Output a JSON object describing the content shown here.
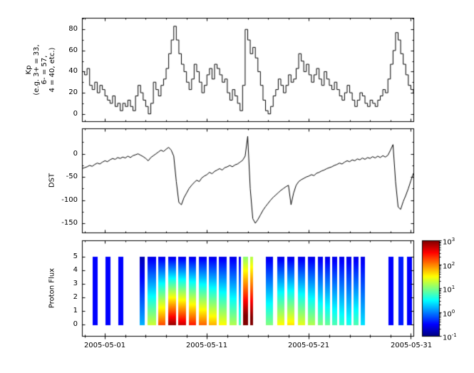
{
  "figure": {
    "background": "#ffffff",
    "x_axis": {
      "tick_labels": [
        "2005-05-01",
        "2005-05-11",
        "2005-05-21",
        "2005-05-31"
      ],
      "tick_days": [
        0,
        10,
        20,
        30
      ],
      "minor_tick_every_days": 2,
      "xlim_days": [
        -2.25,
        30.25
      ]
    }
  },
  "chart_data": [
    {
      "type": "line",
      "name": "kp-index",
      "ylabel_lines": [
        "Kp",
        "(e.g. 3+ = 33,",
        "6- = 57,",
        "4 = 40, etc.)"
      ],
      "ylim": [
        -7,
        91
      ],
      "yticks": [
        0,
        20,
        40,
        60,
        80
      ],
      "yticks_minor": [
        10,
        30,
        50,
        70,
        90
      ],
      "line_color": "#000000",
      "line_style": "step",
      "x_start_day": -2.25,
      "x_step_days": 0.25,
      "values": [
        40,
        37,
        43,
        27,
        23,
        30,
        20,
        27,
        23,
        17,
        13,
        10,
        17,
        7,
        10,
        3,
        10,
        7,
        13,
        7,
        3,
        17,
        27,
        20,
        13,
        7,
        0,
        10,
        30,
        23,
        17,
        27,
        33,
        43,
        57,
        70,
        83,
        70,
        57,
        47,
        40,
        30,
        23,
        33,
        47,
        40,
        30,
        20,
        27,
        37,
        43,
        33,
        47,
        43,
        37,
        30,
        33,
        20,
        13,
        23,
        17,
        10,
        3,
        27,
        80,
        70,
        57,
        63,
        53,
        40,
        27,
        13,
        3,
        0,
        7,
        17,
        23,
        33,
        27,
        20,
        27,
        37,
        30,
        33,
        43,
        57,
        50,
        40,
        47,
        37,
        30,
        37,
        43,
        33,
        27,
        40,
        33,
        27,
        23,
        30,
        23,
        17,
        13,
        20,
        27,
        20,
        13,
        7,
        13,
        20,
        17,
        10,
        7,
        13,
        10,
        7,
        13,
        17,
        23,
        20,
        33,
        47,
        60,
        77,
        70,
        57,
        47,
        37,
        27,
        23,
        20
      ]
    },
    {
      "type": "line",
      "name": "dst-index",
      "ylabel": "DST",
      "ylim": [
        -170,
        55
      ],
      "yticks": [
        0,
        -50,
        -100,
        -150
      ],
      "yticks_minor": [
        25,
        -25,
        -75,
        -125
      ],
      "line_color": "#000000",
      "line_style": "linear",
      "x_start_day": -2.25,
      "x_step_days": 0.25,
      "values": [
        -32,
        -30,
        -28,
        -25,
        -27,
        -23,
        -20,
        -22,
        -18,
        -15,
        -17,
        -13,
        -10,
        -12,
        -8,
        -10,
        -7,
        -9,
        -5,
        -8,
        -4,
        -2,
        0,
        -3,
        -6,
        -10,
        -15,
        -8,
        -4,
        0,
        4,
        8,
        5,
        10,
        14,
        8,
        -5,
        -60,
        -105,
        -110,
        -95,
        -85,
        -75,
        -68,
        -62,
        -57,
        -60,
        -52,
        -48,
        -45,
        -40,
        -43,
        -38,
        -35,
        -32,
        -35,
        -30,
        -28,
        -25,
        -28,
        -24,
        -22,
        -18,
        -14,
        -5,
        38,
        -75,
        -140,
        -150,
        -142,
        -132,
        -122,
        -114,
        -107,
        -100,
        -94,
        -89,
        -84,
        -79,
        -75,
        -71,
        -68,
        -110,
        -85,
        -68,
        -60,
        -56,
        -53,
        -50,
        -48,
        -45,
        -47,
        -42,
        -40,
        -37,
        -35,
        -32,
        -30,
        -28,
        -25,
        -23,
        -20,
        -22,
        -18,
        -15,
        -17,
        -13,
        -15,
        -11,
        -13,
        -9,
        -12,
        -8,
        -10,
        -6,
        -9,
        -5,
        -8,
        -4,
        -7,
        -3,
        8,
        20,
        -60,
        -115,
        -120,
        -103,
        -90,
        -75,
        -58,
        -42
      ]
    },
    {
      "type": "heatmap",
      "name": "proton-flux-spectrogram",
      "ylabel": "Proton Flux",
      "ylim": [
        -0.85,
        6.2
      ],
      "yticks": [
        0,
        1,
        2,
        3,
        4,
        5
      ],
      "stripe_y_span": [
        0,
        5
      ],
      "colormap": "jet",
      "value_range_log10": [
        -1,
        3
      ],
      "colorbar": {
        "base_label": "10",
        "tick_exponents": [
          3,
          2,
          1,
          0,
          -1
        ]
      },
      "stripes": [
        {
          "t0": -1.2,
          "t1": -0.7,
          "base": -0.5,
          "k": 0
        },
        {
          "t0": 0.05,
          "t1": 0.55,
          "base": -0.5,
          "k": 0
        },
        {
          "t0": 1.3,
          "t1": 1.8,
          "base": -0.5,
          "k": 0
        },
        {
          "t0": 3.4,
          "t1": 3.9,
          "base": 0.2,
          "k": 0.2
        },
        {
          "t0": 4.2,
          "t1": 5.0,
          "base": 1.3,
          "k": 0.38
        },
        {
          "t0": 5.2,
          "t1": 5.95,
          "base": 2.2,
          "k": 0.56
        },
        {
          "t0": 6.2,
          "t1": 6.95,
          "base": 2.9,
          "k": 0.7
        },
        {
          "t0": 7.2,
          "t1": 7.95,
          "base": 2.7,
          "k": 0.66
        },
        {
          "t0": 8.2,
          "t1": 8.95,
          "base": 2.4,
          "k": 0.6
        },
        {
          "t0": 9.2,
          "t1": 9.95,
          "base": 2.1,
          "k": 0.54
        },
        {
          "t0": 10.2,
          "t1": 10.95,
          "base": 1.8,
          "k": 0.48
        },
        {
          "t0": 11.2,
          "t1": 11.95,
          "base": 1.5,
          "k": 0.42
        },
        {
          "t0": 12.2,
          "t1": 12.9,
          "base": 1.2,
          "k": 0.36
        },
        {
          "t0": 13.1,
          "t1": 13.35,
          "base": 0.8,
          "k": 0.28
        },
        {
          "t0": 13.55,
          "t1": 14.0,
          "base": 3.3,
          "k": 0.45
        },
        {
          "t0": 14.25,
          "t1": 14.55,
          "base": 3.2,
          "k": 0.4
        },
        {
          "t0": 15.8,
          "t1": 16.5,
          "base": 1.0,
          "k": 0.32
        },
        {
          "t0": 16.9,
          "t1": 17.6,
          "base": 1.5,
          "k": 0.42
        },
        {
          "t0": 17.9,
          "t1": 18.6,
          "base": 1.6,
          "k": 0.44
        },
        {
          "t0": 18.9,
          "t1": 19.6,
          "base": 1.4,
          "k": 0.4
        },
        {
          "t0": 19.9,
          "t1": 20.6,
          "base": 1.2,
          "k": 0.36
        },
        {
          "t0": 20.9,
          "t1": 21.4,
          "base": 1.0,
          "k": 0.32
        },
        {
          "t0": 21.6,
          "t1": 22.1,
          "base": 0.9,
          "k": 0.3
        },
        {
          "t0": 22.3,
          "t1": 22.8,
          "base": 0.8,
          "k": 0.28
        },
        {
          "t0": 23.0,
          "t1": 23.5,
          "base": 0.7,
          "k": 0.26
        },
        {
          "t0": 23.7,
          "t1": 24.2,
          "base": 0.6,
          "k": 0.24
        },
        {
          "t0": 24.4,
          "t1": 24.9,
          "base": 0.8,
          "k": 0.28
        },
        {
          "t0": 25.1,
          "t1": 25.5,
          "base": 0.4,
          "k": 0.2
        },
        {
          "t0": 27.8,
          "t1": 28.3,
          "base": -0.5,
          "k": 0
        },
        {
          "t0": 28.8,
          "t1": 29.3,
          "base": -0.4,
          "k": 0
        },
        {
          "t0": 29.6,
          "t1": 30.1,
          "base": -0.5,
          "k": 0
        }
      ]
    }
  ]
}
